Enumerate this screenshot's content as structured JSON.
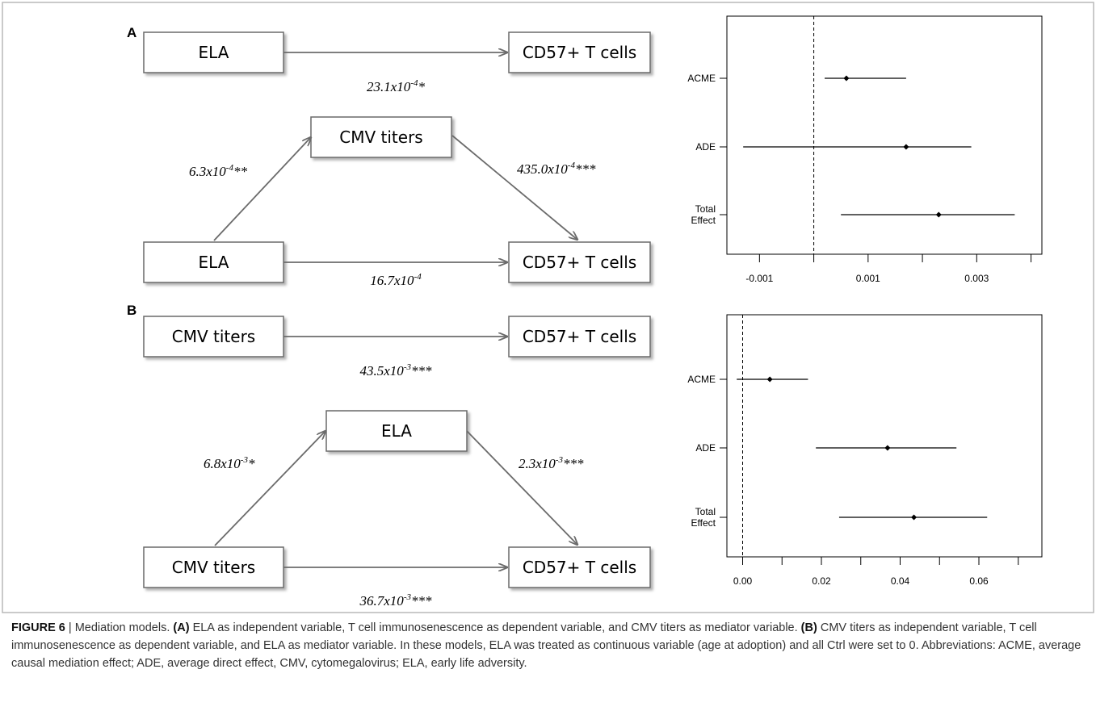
{
  "panels": [
    {
      "letter": "A",
      "top": {
        "from": "ELA",
        "to": "CD57+ T cells",
        "coef": {
          "base": "23.1x10",
          "exp": "-4",
          "sig": "*"
        }
      },
      "mediation": {
        "left": "ELA",
        "mediator": "CMV titers",
        "right": "CD57+ T cells",
        "a": {
          "base": "6.3x10",
          "exp": "-4",
          "sig": "**"
        },
        "b": {
          "base": "435.0x10",
          "exp": "-4",
          "sig": "***"
        },
        "c": {
          "base": "16.7x10",
          "exp": "-4",
          "sig": ""
        }
      }
    },
    {
      "letter": "B",
      "top": {
        "from": "CMV titers",
        "to": "CD57+ T cells",
        "coef": {
          "base": "43.5x10",
          "exp": "-3",
          "sig": "***"
        }
      },
      "mediation": {
        "left": "CMV titers",
        "mediator": "ELA",
        "right": "CD57+ T cells",
        "a": {
          "base": "6.8x10",
          "exp": "-3",
          "sig": "*"
        },
        "b": {
          "base": "2.3x10",
          "exp": "-3",
          "sig": "***"
        },
        "c": {
          "base": "36.7x10",
          "exp": "-3",
          "sig": "***"
        }
      }
    }
  ],
  "chart_data": [
    {
      "type": "scatter",
      "subtype": "forest-plot",
      "categories": [
        "ACME",
        "ADE",
        "Total\nEffect"
      ],
      "estimates": [
        0.0006,
        0.0017,
        0.0023
      ],
      "ci_low": [
        0.0002,
        -0.0013,
        0.0005
      ],
      "ci_high": [
        0.0017,
        0.0029,
        0.0037
      ],
      "xlim": [
        -0.0016,
        0.0042
      ],
      "xticks": [
        -0.001,
        0,
        0.001,
        0.002,
        0.003,
        0.004
      ],
      "xtick_labels": [
        "-0.001",
        "",
        "0.001",
        "",
        "0.003",
        ""
      ],
      "reference_line": 0,
      "grid": false
    },
    {
      "type": "scatter",
      "subtype": "forest-plot",
      "categories": [
        "ACME",
        "ADE",
        "Total\nEffect"
      ],
      "estimates": [
        0.0069,
        0.0368,
        0.0435
      ],
      "ci_low": [
        -0.0015,
        0.0186,
        0.0245
      ],
      "ci_high": [
        0.0166,
        0.0543,
        0.0621
      ],
      "xlim": [
        -0.004,
        0.076
      ],
      "xticks": [
        0,
        0.01,
        0.02,
        0.03,
        0.04,
        0.05,
        0.06,
        0.07
      ],
      "xtick_labels": [
        "0.00",
        "",
        "0.02",
        "",
        "0.04",
        "",
        "0.06",
        ""
      ],
      "reference_line": 0,
      "grid": false
    }
  ],
  "caption": {
    "figure_label": "FIGURE 6",
    "separator": " | ",
    "text_1": "Mediation models. ",
    "bold_a": "(A)",
    "text_2": " ELA as independent variable, T cell immunosenescence as dependent variable, and CMV titers as mediator variable. ",
    "bold_b": "(B)",
    "text_3": " CMV titers as independent variable, T cell immunosenescence as dependent variable, and ELA as mediator variable. In these models, ELA was treated as continuous variable (age at adoption) and all Ctrl were set to 0. Abbreviations: ACME, average causal mediation effect; ADE, average direct effect, CMV, cytomegalovirus; ELA, early life adversity."
  },
  "colors": {
    "frame": "#b9b9b9",
    "box_border": "#6b6b6b",
    "arrow": "#6b6b6b",
    "ink": "#000000",
    "caption": "#333333"
  }
}
